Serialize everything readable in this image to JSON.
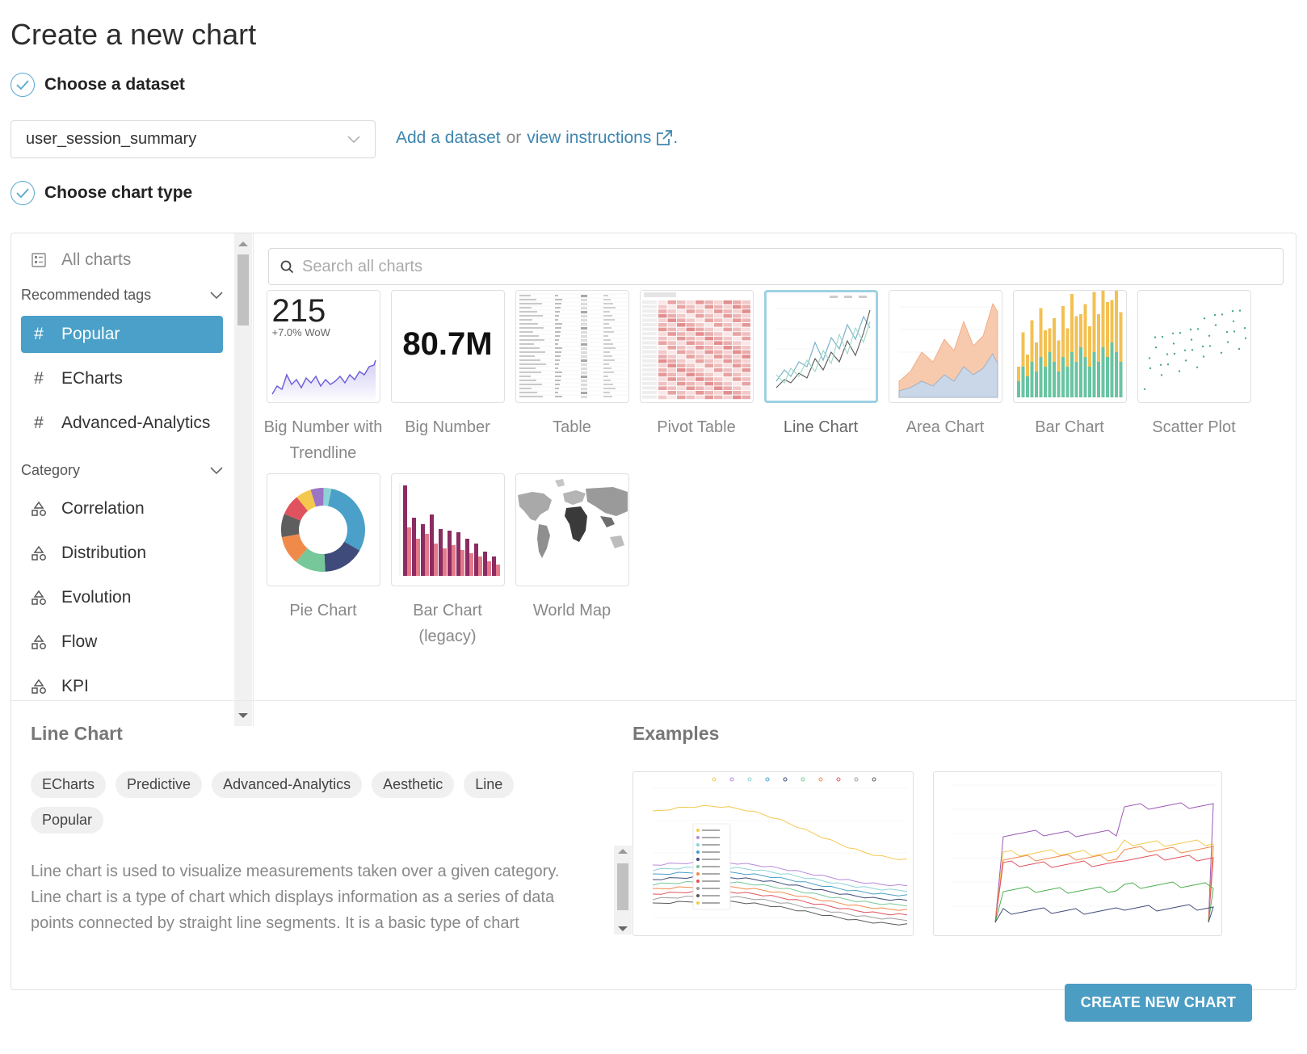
{
  "title": "Create a new chart",
  "steps": {
    "dataset": {
      "label": "Choose a dataset"
    },
    "chart_type": {
      "label": "Choose chart type"
    }
  },
  "dataset": {
    "selected": "user_session_summary",
    "add_link": "Add a dataset",
    "or_text": "or",
    "instructions_link": "view instructions",
    "period": "."
  },
  "sidebar": {
    "all_charts": "All charts",
    "recommended_tags_label": "Recommended tags",
    "tags": [
      {
        "label": "Popular",
        "selected": true
      },
      {
        "label": "ECharts"
      },
      {
        "label": "Advanced-Analytics"
      }
    ],
    "category_label": "Category",
    "categories": [
      "Correlation",
      "Distribution",
      "Evolution",
      "Flow",
      "KPI"
    ]
  },
  "search": {
    "placeholder": "Search all charts"
  },
  "charts": [
    {
      "label": "Big Number with Trendline",
      "number": "215",
      "subtitle": "+7.0% WoW"
    },
    {
      "label": "Big Number",
      "number": "80.7M"
    },
    {
      "label": "Table"
    },
    {
      "label": "Pivot Table"
    },
    {
      "label": "Line Chart",
      "selected": true
    },
    {
      "label": "Area Chart"
    },
    {
      "label": "Bar Chart"
    },
    {
      "label": "Scatter Plot"
    },
    {
      "label": "Pie Chart"
    },
    {
      "label": "Bar Chart (legacy)"
    },
    {
      "label": "World Map"
    }
  ],
  "detail": {
    "title": "Line Chart",
    "tags": [
      "ECharts",
      "Predictive",
      "Advanced-Analytics",
      "Aesthetic",
      "Line",
      "Popular"
    ],
    "description": "Line chart is used to visualize measurements taken over a given category. Line chart is a type of chart which displays information as a series of data points connected by straight line segments. It is a basic type of chart common in many fields.",
    "examples_title": "Examples"
  },
  "create_button": "CREATE NEW CHART",
  "colors": {
    "accent": "#4aa0c8",
    "link": "#3e86b0",
    "button": "#4c9dc4"
  }
}
